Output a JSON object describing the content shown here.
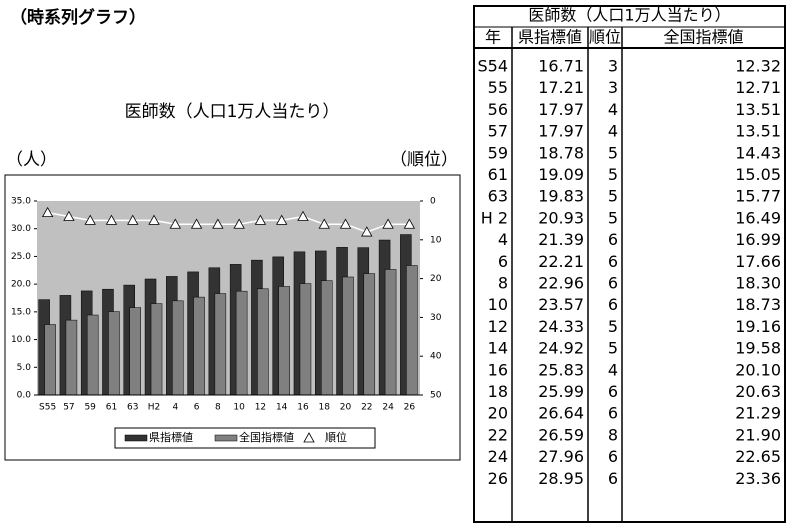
{
  "heading": "（時系列グラフ）",
  "chart_data": {
    "type": "bar",
    "title": "医師数（人口1万人当たり）",
    "ylabel": "（人）",
    "y2label": "（順位）",
    "categories": [
      "S55",
      "57",
      "59",
      "61",
      "63",
      "H2",
      "4",
      "6",
      "8",
      "10",
      "12",
      "14",
      "16",
      "18",
      "20",
      "22",
      "24",
      "26"
    ],
    "series": [
      {
        "name": "県指標値",
        "color": "#333333",
        "values": [
          17.21,
          17.97,
          18.78,
          19.09,
          19.83,
          20.93,
          21.39,
          22.21,
          22.96,
          23.57,
          24.33,
          24.92,
          25.83,
          25.99,
          26.64,
          26.59,
          27.96,
          28.95
        ]
      },
      {
        "name": "全国指標値",
        "color": "#808080",
        "values": [
          12.71,
          13.51,
          14.43,
          15.05,
          15.77,
          16.49,
          16.99,
          17.66,
          18.3,
          18.73,
          19.16,
          19.58,
          20.1,
          20.63,
          21.29,
          21.9,
          22.65,
          23.36
        ]
      },
      {
        "name": "順位",
        "color": "#ffffff",
        "axis": "y2",
        "marker": "triangle",
        "values": [
          3,
          4,
          5,
          5,
          5,
          5,
          6,
          6,
          6,
          6,
          5,
          5,
          4,
          6,
          6,
          8,
          6,
          6
        ]
      }
    ],
    "ylim": [
      0,
      35
    ],
    "yticks": [
      {
        "value": 0,
        "label": "0.0"
      },
      {
        "value": 5,
        "label": "5.0"
      },
      {
        "value": 10,
        "label": "10.0"
      },
      {
        "value": 15,
        "label": "15.0"
      },
      {
        "value": 20,
        "label": "20.0"
      },
      {
        "value": 25,
        "label": "25.0"
      },
      {
        "value": 30,
        "label": "30.0"
      },
      {
        "value": 35,
        "label": "35.0"
      }
    ],
    "y2lim": [
      50,
      0
    ],
    "y2ticks": [
      0,
      10,
      20,
      30,
      40,
      50
    ],
    "legend": "bottom"
  },
  "table": {
    "title": "医師数（人口1万人当たり）",
    "columns": [
      "年",
      "県指標値",
      "順位",
      "全国指標値"
    ],
    "rows": [
      [
        "S54",
        "16.71",
        "3",
        "12.32"
      ],
      [
        "55",
        "17.21",
        "3",
        "12.71"
      ],
      [
        "56",
        "17.97",
        "4",
        "13.51"
      ],
      [
        "57",
        "17.97",
        "4",
        "13.51"
      ],
      [
        "59",
        "18.78",
        "5",
        "14.43"
      ],
      [
        "61",
        "19.09",
        "5",
        "15.05"
      ],
      [
        "63",
        "19.83",
        "5",
        "15.77"
      ],
      [
        "H 2",
        "20.93",
        "5",
        "16.49"
      ],
      [
        "4",
        "21.39",
        "6",
        "16.99"
      ],
      [
        "6",
        "22.21",
        "6",
        "17.66"
      ],
      [
        "8",
        "22.96",
        "6",
        "18.30"
      ],
      [
        "10",
        "23.57",
        "6",
        "18.73"
      ],
      [
        "12",
        "24.33",
        "5",
        "19.16"
      ],
      [
        "14",
        "24.92",
        "5",
        "19.58"
      ],
      [
        "16",
        "25.83",
        "4",
        "20.10"
      ],
      [
        "18",
        "25.99",
        "6",
        "20.63"
      ],
      [
        "20",
        "26.64",
        "6",
        "21.29"
      ],
      [
        "22",
        "26.59",
        "8",
        "21.90"
      ],
      [
        "24",
        "27.96",
        "6",
        "22.65"
      ],
      [
        "26",
        "28.95",
        "6",
        "23.36"
      ]
    ]
  }
}
